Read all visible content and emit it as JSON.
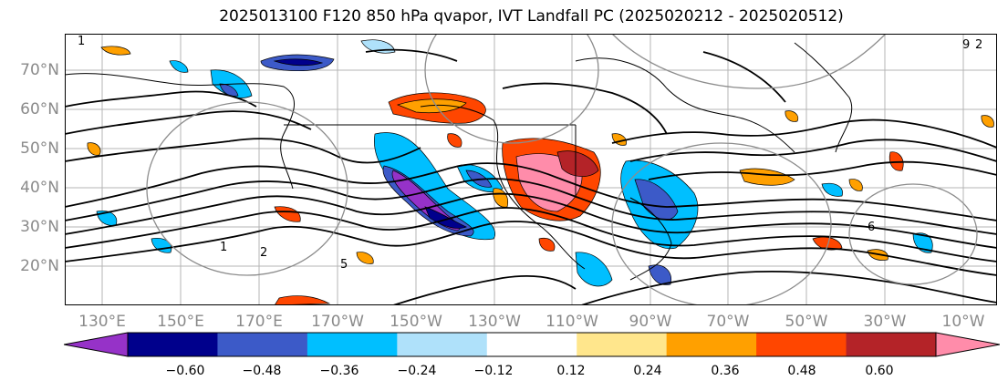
{
  "title": "2025013100 F120 850 hPa qvapor, IVT Landfall PC (2025020212 - 2025020512)",
  "latitude_labels": [
    "70°N",
    "60°N",
    "50°N",
    "40°N",
    "30°N",
    "20°N"
  ],
  "longitude_labels": [
    "130°E",
    "150°E",
    "170°E",
    "170°W",
    "150°W",
    "130°W",
    "110°W",
    "90°W",
    "70°W",
    "50°W",
    "30°W",
    "10°W"
  ],
  "colorbar": {
    "ticks": [
      "−0.60",
      "−0.48",
      "−0.36",
      "−0.24",
      "−0.12",
      "0.12",
      "0.24",
      "0.36",
      "0.48",
      "0.60"
    ],
    "colors": [
      "#9632c8",
      "#00008c",
      "#3c5ac8",
      "#00bfff",
      "#afe1fa",
      "#ffffff",
      "#ffe68c",
      "#ffa000",
      "#ff4600",
      "#b42328",
      "#ff8caa"
    ]
  },
  "contour_labels": [
    "1",
    "1",
    "2",
    "5",
    "6",
    "9",
    "2"
  ]
}
